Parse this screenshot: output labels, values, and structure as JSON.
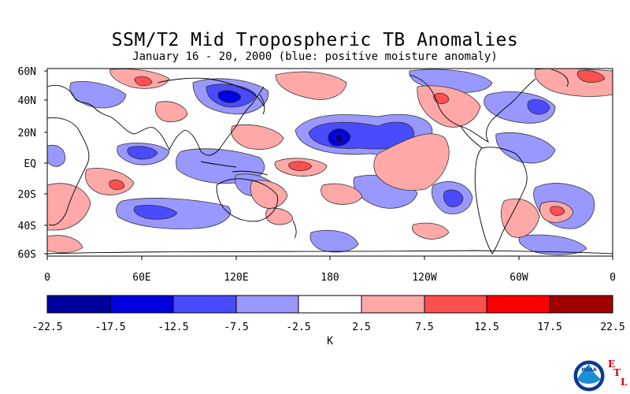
{
  "title": "SSM/T2 Mid Tropospheric TB Anomalies",
  "subtitle": "January 16 - 20, 2000 (blue: positive moisture anomaly)",
  "map": {
    "lat_labels": [
      "60N",
      "40N",
      "20N",
      "EQ",
      "20S",
      "40S",
      "60S"
    ],
    "lon_labels": [
      "0",
      "60E",
      "120E",
      "180",
      "120W",
      "60W",
      "0"
    ]
  },
  "colorbar": {
    "boundaries": [
      "-22.5",
      "-17.5",
      "-12.5",
      "-7.5",
      "-2.5",
      "2.5",
      "7.5",
      "12.5",
      "17.5",
      "22.5"
    ],
    "colors": [
      "#0000a0",
      "#0000e0",
      "#4a4aff",
      "#9898ff",
      "#ffffff",
      "#ffa8a8",
      "#ff4f4f",
      "#ff0000",
      "#a00000"
    ],
    "unit": "K"
  },
  "logo": {
    "agency": "NOAA",
    "letters": [
      "E",
      "T",
      "L"
    ]
  }
}
